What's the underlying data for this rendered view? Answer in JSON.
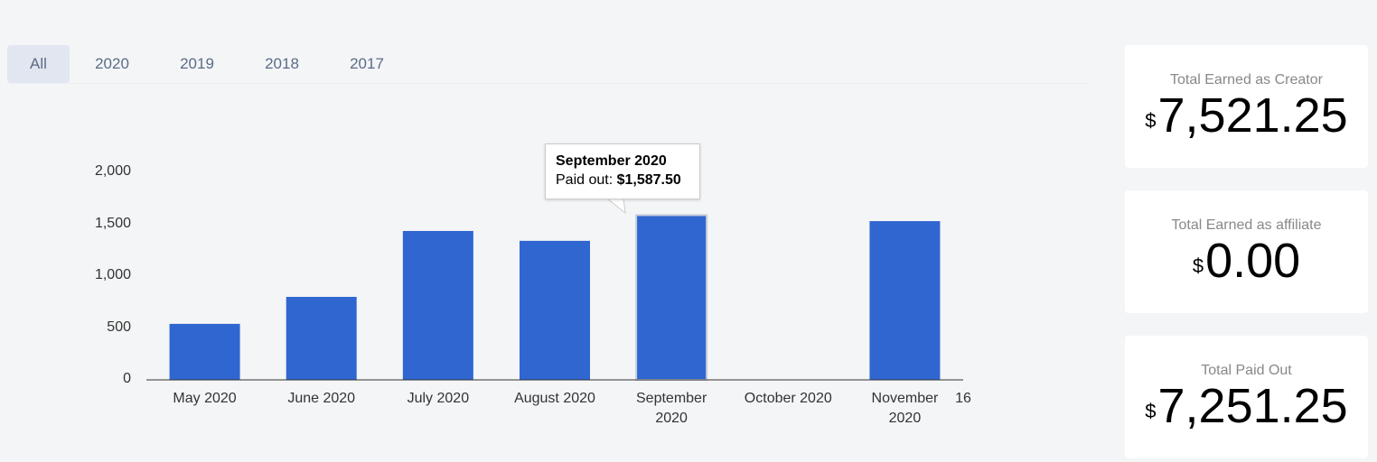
{
  "tabs": [
    "All",
    "2020",
    "2019",
    "2018",
    "2017"
  ],
  "chart_data": {
    "type": "bar",
    "categories": [
      "May 2020",
      "June 2020",
      "July 2020",
      "August 2020",
      "September 2020",
      "October 2020",
      "November 2020"
    ],
    "values": [
      540,
      800,
      1435,
      1340,
      1587.5,
      0,
      1530
    ],
    "color": "#3066d0",
    "ylim": [
      0,
      2000
    ],
    "yticks": [
      0,
      500,
      {
        "value": 1000,
        "label": "1,000"
      },
      {
        "value": 1500,
        "label": "1,500"
      },
      {
        "value": 2000,
        "label": "2,000"
      }
    ],
    "grid": false,
    "annotations": [
      "16"
    ],
    "tooltip": {
      "title": "September 2020",
      "label": "Paid out:",
      "value_label": "$1,587.50"
    }
  },
  "cards": [
    {
      "title": "Total Earned as Creator",
      "currency": "$",
      "amount": "7,521.25"
    },
    {
      "title": "Total Earned as affiliate",
      "currency": "$",
      "amount": "0.00"
    },
    {
      "title": "Total Paid Out",
      "currency": "$",
      "amount": "7,251.25"
    }
  ]
}
